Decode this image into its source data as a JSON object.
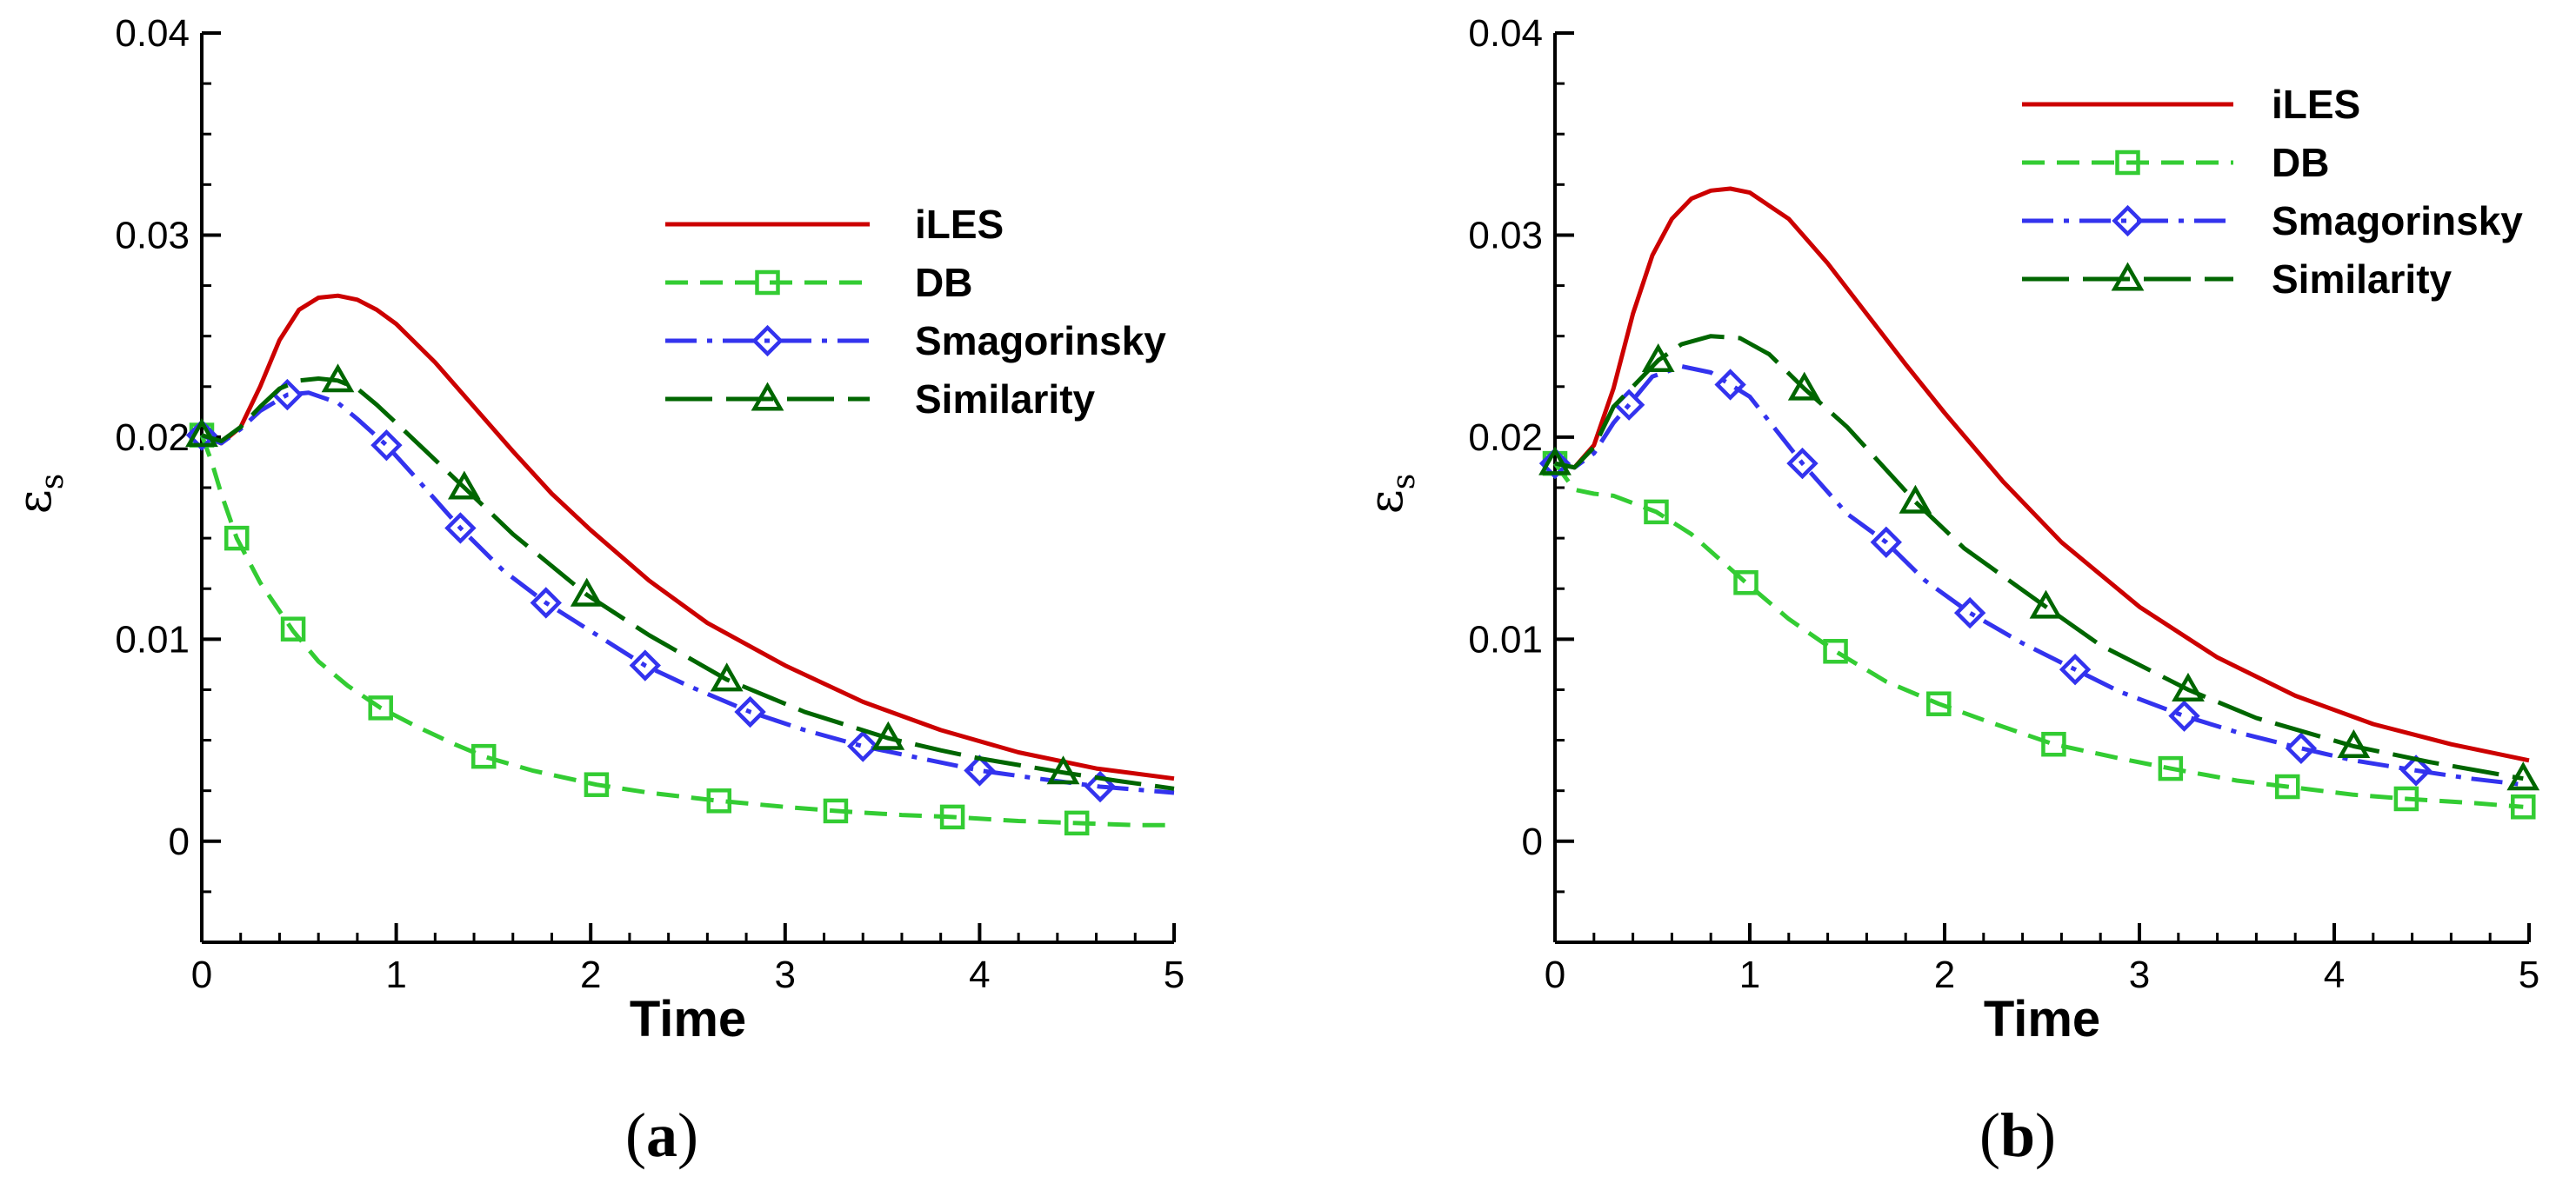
{
  "chart_data": [
    {
      "type": "line",
      "panel_label": "a",
      "xlabel": "Time",
      "ylabel": "ε",
      "ylabel_sub": "s",
      "xlim": [
        0,
        5
      ],
      "ylim": [
        -0.005,
        0.04
      ],
      "xticks": [
        0,
        1,
        2,
        3,
        4,
        5
      ],
      "xtick_labels": [
        "0",
        "1",
        "2",
        "3",
        "4",
        "5"
      ],
      "yticks": [
        0,
        0.01,
        0.02,
        0.03,
        0.04
      ],
      "ytick_labels": [
        "0",
        "0.01",
        "0.02",
        "0.03",
        "0.04"
      ],
      "legend_position": "upper-right",
      "series": [
        {
          "name": "iLES",
          "color": "#cc0000",
          "dash": "solid",
          "marker": "none",
          "x": [
            0,
            0.1,
            0.2,
            0.3,
            0.4,
            0.5,
            0.6,
            0.7,
            0.8,
            0.9,
            1.0,
            1.2,
            1.4,
            1.6,
            1.8,
            2.0,
            2.3,
            2.6,
            3.0,
            3.4,
            3.8,
            4.2,
            4.6,
            5.0
          ],
          "y": [
            0.0201,
            0.0197,
            0.0205,
            0.0225,
            0.0248,
            0.0263,
            0.0269,
            0.027,
            0.0268,
            0.0263,
            0.0256,
            0.0237,
            0.0215,
            0.0193,
            0.0172,
            0.0154,
            0.0129,
            0.0108,
            0.0087,
            0.0069,
            0.0055,
            0.0044,
            0.0036,
            0.0031
          ]
        },
        {
          "name": "DB",
          "color": "#33cc33",
          "dash": "dashed",
          "marker": "square",
          "x": [
            0,
            0.05,
            0.1,
            0.18,
            0.3,
            0.47,
            0.6,
            0.75,
            0.92,
            1.1,
            1.3,
            1.45,
            1.7,
            2.03,
            2.3,
            2.66,
            3.0,
            3.26,
            3.6,
            3.86,
            4.2,
            4.5,
            4.8,
            5.0
          ],
          "y": [
            0.0201,
            0.0188,
            0.0172,
            0.015,
            0.0128,
            0.0104,
            0.0089,
            0.0077,
            0.0066,
            0.0057,
            0.0048,
            0.0042,
            0.0035,
            0.0028,
            0.0024,
            0.002,
            0.0017,
            0.0015,
            0.0013,
            0.0012,
            0.001,
            0.0009,
            0.0008,
            0.0008
          ],
          "markers_x": [
            0,
            0.18,
            0.47,
            0.92,
            1.45,
            2.03,
            2.66,
            3.26,
            3.86,
            4.5
          ],
          "markers_y": [
            0.0201,
            0.015,
            0.0105,
            0.0066,
            0.0042,
            0.0028,
            0.002,
            0.0015,
            0.0012,
            0.0009
          ]
        },
        {
          "name": "Smagorinsky",
          "color": "#3333ee",
          "dash": "dashdot",
          "marker": "diamond",
          "x": [
            0,
            0.1,
            0.2,
            0.3,
            0.44,
            0.55,
            0.7,
            0.8,
            0.95,
            1.1,
            1.33,
            1.55,
            1.77,
            2.0,
            2.28,
            2.5,
            2.82,
            3.1,
            3.4,
            3.7,
            4.0,
            4.3,
            4.62,
            5.0
          ],
          "y": [
            0.0201,
            0.0197,
            0.0204,
            0.0213,
            0.0221,
            0.0222,
            0.0217,
            0.0209,
            0.0196,
            0.018,
            0.0155,
            0.0134,
            0.0118,
            0.0104,
            0.0087,
            0.0077,
            0.0064,
            0.0055,
            0.0047,
            0.0041,
            0.0035,
            0.0031,
            0.0027,
            0.0024
          ],
          "markers_x": [
            0,
            0.44,
            0.95,
            1.33,
            1.77,
            2.28,
            2.82,
            3.4,
            4.0,
            4.62
          ],
          "markers_y": [
            0.0201,
            0.0221,
            0.0196,
            0.0155,
            0.0118,
            0.0087,
            0.0064,
            0.0047,
            0.0035,
            0.0027
          ]
        },
        {
          "name": "Similarity",
          "color": "#006600",
          "dash": "longdash",
          "marker": "triangle",
          "x": [
            0,
            0.1,
            0.2,
            0.3,
            0.4,
            0.5,
            0.6,
            0.7,
            0.8,
            0.9,
            1.0,
            1.35,
            1.6,
            1.98,
            2.3,
            2.7,
            3.1,
            3.53,
            3.8,
            4.0,
            4.43,
            4.7,
            5.0
          ],
          "y": [
            0.0201,
            0.0198,
            0.0205,
            0.0215,
            0.0224,
            0.0228,
            0.0229,
            0.0228,
            0.0224,
            0.0216,
            0.0207,
            0.0175,
            0.0152,
            0.0122,
            0.0102,
            0.008,
            0.0064,
            0.0051,
            0.0045,
            0.0041,
            0.0034,
            0.003,
            0.0026
          ],
          "markers_x": [
            0,
            0.7,
            1.35,
            1.98,
            2.7,
            3.53,
            4.43
          ],
          "markers_y": [
            0.0201,
            0.0228,
            0.0175,
            0.0122,
            0.008,
            0.0051,
            0.0034
          ]
        }
      ]
    },
    {
      "type": "line",
      "panel_label": "b",
      "xlabel": "Time",
      "ylabel": "ε",
      "ylabel_sub": "s",
      "xlim": [
        0,
        5
      ],
      "ylim": [
        -0.005,
        0.04
      ],
      "xticks": [
        0,
        1,
        2,
        3,
        4,
        5
      ],
      "xtick_labels": [
        "0",
        "1",
        "2",
        "3",
        "4",
        "5"
      ],
      "yticks": [
        0,
        0.01,
        0.02,
        0.03,
        0.04
      ],
      "ytick_labels": [
        "0",
        "0.01",
        "0.02",
        "0.03",
        "0.04"
      ],
      "legend_position": "top-right",
      "series": [
        {
          "name": "iLES",
          "color": "#cc0000",
          "dash": "solid",
          "marker": "none",
          "x": [
            0,
            0.1,
            0.2,
            0.3,
            0.4,
            0.5,
            0.6,
            0.7,
            0.8,
            0.9,
            1.0,
            1.2,
            1.4,
            1.6,
            1.8,
            2.0,
            2.3,
            2.6,
            3.0,
            3.4,
            3.8,
            4.2,
            4.6,
            5.0
          ],
          "y": [
            0.0187,
            0.0185,
            0.0196,
            0.0224,
            0.0261,
            0.029,
            0.0308,
            0.0318,
            0.0322,
            0.0323,
            0.0321,
            0.0308,
            0.0286,
            0.0261,
            0.0236,
            0.0212,
            0.0178,
            0.0148,
            0.0116,
            0.0091,
            0.0072,
            0.0058,
            0.0048,
            0.004
          ]
        },
        {
          "name": "DB",
          "color": "#33cc33",
          "dash": "dashed",
          "marker": "square",
          "x": [
            0,
            0.1,
            0.2,
            0.3,
            0.52,
            0.7,
            0.98,
            1.2,
            1.44,
            1.7,
            1.97,
            2.2,
            2.56,
            2.9,
            3.16,
            3.5,
            3.76,
            4.1,
            4.37,
            4.7,
            4.97
          ],
          "y": [
            0.0187,
            0.0174,
            0.0172,
            0.0171,
            0.0163,
            0.0152,
            0.0128,
            0.011,
            0.0094,
            0.0079,
            0.0068,
            0.006,
            0.0048,
            0.0041,
            0.0036,
            0.003,
            0.0027,
            0.0023,
            0.0021,
            0.0019,
            0.0017
          ],
          "markers_x": [
            0,
            0.52,
            0.98,
            1.44,
            1.97,
            2.56,
            3.16,
            3.76,
            4.37,
            4.97
          ],
          "markers_y": [
            0.0187,
            0.0163,
            0.0128,
            0.0094,
            0.0068,
            0.0048,
            0.0036,
            0.0027,
            0.0021,
            0.0017
          ]
        },
        {
          "name": "Smagorinsky",
          "color": "#3333ee",
          "dash": "dashdot",
          "marker": "diamond",
          "x": [
            0,
            0.1,
            0.2,
            0.3,
            0.38,
            0.5,
            0.65,
            0.8,
            0.9,
            1.0,
            1.27,
            1.5,
            1.7,
            1.9,
            2.13,
            2.4,
            2.67,
            2.9,
            3.23,
            3.5,
            3.83,
            4.1,
            4.42,
            4.7,
            4.97
          ],
          "y": [
            0.0187,
            0.0185,
            0.0192,
            0.0207,
            0.0216,
            0.023,
            0.0235,
            0.0232,
            0.0226,
            0.022,
            0.0187,
            0.0162,
            0.0148,
            0.0129,
            0.0113,
            0.0098,
            0.0085,
            0.0074,
            0.0062,
            0.0054,
            0.0046,
            0.004,
            0.0035,
            0.0031,
            0.0028
          ],
          "markers_x": [
            0,
            0.38,
            0.9,
            1.27,
            1.7,
            2.13,
            2.67,
            3.23,
            3.83,
            4.42
          ],
          "markers_y": [
            0.0187,
            0.0216,
            0.0226,
            0.0187,
            0.0148,
            0.0113,
            0.0085,
            0.0062,
            0.0046,
            0.0035
          ]
        },
        {
          "name": "Similarity",
          "color": "#006600",
          "dash": "longdash",
          "marker": "triangle",
          "x": [
            0,
            0.1,
            0.2,
            0.3,
            0.53,
            0.65,
            0.8,
            0.95,
            1.1,
            1.28,
            1.5,
            1.85,
            2.1,
            2.52,
            2.8,
            3.25,
            3.6,
            4.1,
            4.5,
            4.97
          ],
          "y": [
            0.0187,
            0.0185,
            0.0195,
            0.0215,
            0.0238,
            0.0246,
            0.025,
            0.0249,
            0.0241,
            0.0224,
            0.0205,
            0.0168,
            0.0145,
            0.0116,
            0.0097,
            0.0075,
            0.0061,
            0.0047,
            0.0039,
            0.0031
          ],
          "markers_x": [
            0,
            0.53,
            1.28,
            1.85,
            2.52,
            3.25,
            4.1,
            4.97
          ],
          "markers_y": [
            0.0187,
            0.0238,
            0.0224,
            0.0168,
            0.0116,
            0.0075,
            0.0047,
            0.0031
          ]
        }
      ]
    }
  ]
}
